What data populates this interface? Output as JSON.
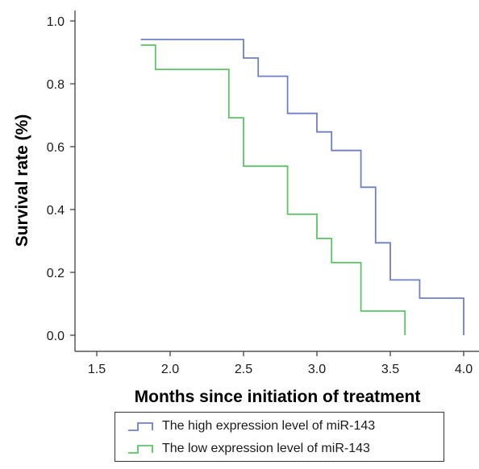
{
  "chart_data": {
    "type": "line",
    "title": "",
    "xlabel": "Months since initiation of treatment",
    "ylabel": "Survival rate (%)",
    "xlim": [
      1.3,
      4.1
    ],
    "ylim": [
      -0.05,
      1.05
    ],
    "x_ticks": [
      "1.5",
      "2.0",
      "2.5",
      "3.0",
      "3.5",
      "4.0"
    ],
    "y_ticks": [
      "0.0",
      "0.2",
      "0.4",
      "0.6",
      "0.8",
      "1.0"
    ],
    "step": true,
    "grid": false,
    "legend_position": "bottom",
    "series": [
      {
        "name": "The high expression level of miR-143",
        "color": "#6e7fc4",
        "points": [
          [
            1.8,
            0.941
          ],
          [
            2.5,
            0.941
          ],
          [
            2.5,
            0.882
          ],
          [
            2.6,
            0.882
          ],
          [
            2.6,
            0.824
          ],
          [
            2.8,
            0.824
          ],
          [
            2.8,
            0.706
          ],
          [
            3.0,
            0.706
          ],
          [
            3.0,
            0.647
          ],
          [
            3.1,
            0.647
          ],
          [
            3.1,
            0.588
          ],
          [
            3.3,
            0.588
          ],
          [
            3.3,
            0.471
          ],
          [
            3.4,
            0.471
          ],
          [
            3.4,
            0.294
          ],
          [
            3.5,
            0.294
          ],
          [
            3.5,
            0.176
          ],
          [
            3.7,
            0.176
          ],
          [
            3.7,
            0.118
          ],
          [
            4.0,
            0.118
          ],
          [
            4.0,
            0.0
          ]
        ]
      },
      {
        "name": "The low expression level of miR-143",
        "color": "#5cc466",
        "points": [
          [
            1.8,
            0.923
          ],
          [
            1.9,
            0.923
          ],
          [
            1.9,
            0.846
          ],
          [
            2.4,
            0.846
          ],
          [
            2.4,
            0.692
          ],
          [
            2.5,
            0.692
          ],
          [
            2.5,
            0.538
          ],
          [
            2.8,
            0.538
          ],
          [
            2.8,
            0.385
          ],
          [
            3.0,
            0.385
          ],
          [
            3.0,
            0.308
          ],
          [
            3.1,
            0.308
          ],
          [
            3.1,
            0.231
          ],
          [
            3.3,
            0.231
          ],
          [
            3.3,
            0.077
          ],
          [
            3.6,
            0.077
          ],
          [
            3.6,
            0.0
          ]
        ]
      }
    ]
  }
}
